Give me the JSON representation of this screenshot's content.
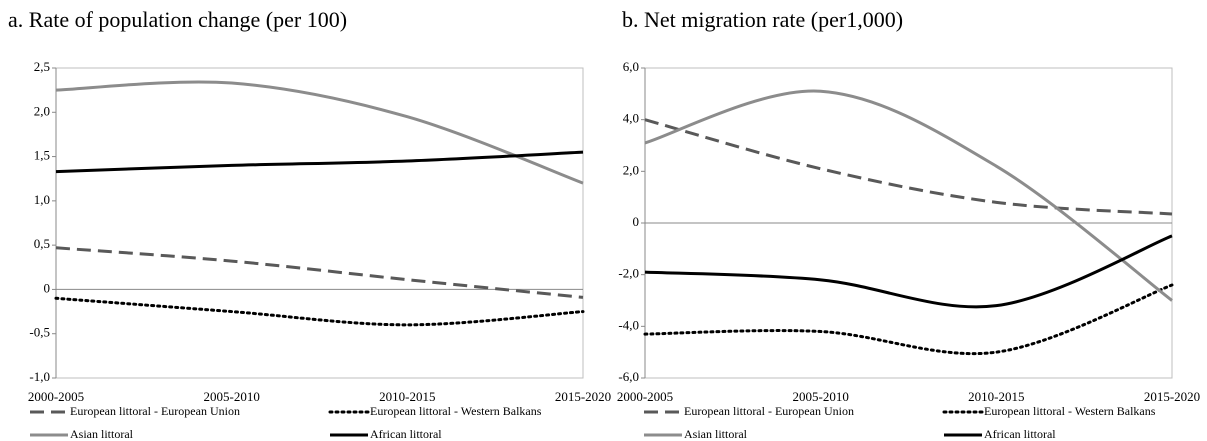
{
  "chart_data": [
    {
      "type": "line",
      "title": "a. Rate of population change (per 100)",
      "categories": [
        "2000-2005",
        "2005-2010",
        "2010-2015",
        "2015-2020"
      ],
      "ylim": [
        -1.0,
        2.5
      ],
      "yticks": [
        {
          "value": -1.0,
          "label": "-1,0"
        },
        {
          "value": -0.5,
          "label": "-0,5"
        },
        0,
        {
          "value": 0.5,
          "label": "0,5"
        },
        {
          "value": 1.0,
          "label": "1,0"
        },
        {
          "value": 1.5,
          "label": "1,5"
        },
        {
          "value": 2.0,
          "label": "2,0"
        },
        {
          "value": 2.5,
          "label": "2,5"
        }
      ],
      "series": [
        {
          "name": "European littoral - European Union",
          "color": "#595959",
          "style": "dashed",
          "values": [
            0.47,
            0.32,
            0.11,
            -0.09
          ]
        },
        {
          "name": "European littoral - Western Balkans",
          "color": "#000000",
          "style": "dotted",
          "values": [
            -0.1,
            -0.25,
            -0.4,
            -0.25
          ]
        },
        {
          "name": "Asian littoral",
          "color": "#8c8c8c",
          "style": "solid",
          "values": [
            2.25,
            2.33,
            1.95,
            1.2
          ]
        },
        {
          "name": "African littoral",
          "color": "#000000",
          "style": "solid",
          "values": [
            1.33,
            1.4,
            1.45,
            1.55
          ]
        }
      ]
    },
    {
      "type": "line",
      "title": "b. Net migration rate (per1,000)",
      "categories": [
        "2000-2005",
        "2005-2010",
        "2010-2015",
        "2015-2020"
      ],
      "ylim": [
        -6.0,
        6.0
      ],
      "yticks": [
        {
          "value": -6.0,
          "label": "-6,0"
        },
        {
          "value": -4.0,
          "label": "-4,0"
        },
        {
          "value": -2.0,
          "label": "-2,0"
        },
        0,
        {
          "value": 2.0,
          "label": "2,0"
        },
        {
          "value": 4.0,
          "label": "4,0"
        },
        {
          "value": 6.0,
          "label": "6,0"
        }
      ],
      "series": [
        {
          "name": "European littoral - European Union",
          "color": "#595959",
          "style": "dashed",
          "values": [
            4.0,
            2.1,
            0.8,
            0.35
          ]
        },
        {
          "name": "European littoral - Western Balkans",
          "color": "#000000",
          "style": "dotted",
          "values": [
            -4.3,
            -4.2,
            -5.0,
            -2.4
          ]
        },
        {
          "name": "Asian littoral",
          "color": "#8c8c8c",
          "style": "solid",
          "values": [
            3.1,
            5.1,
            2.2,
            -3.0
          ]
        },
        {
          "name": "African littoral",
          "color": "#000000",
          "style": "solid",
          "values": [
            -1.9,
            -2.2,
            -3.2,
            -0.5
          ]
        }
      ]
    }
  ]
}
